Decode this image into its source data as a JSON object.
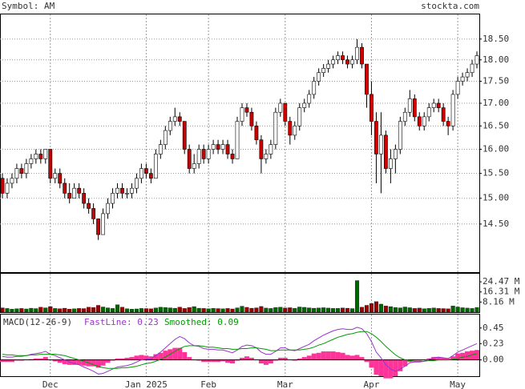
{
  "chart_data": [
    {
      "type": "candlestick",
      "title": "Symbol: AM",
      "source": "stockta.com",
      "log": true,
      "grid": true,
      "up_color": "#ffffff",
      "down_color": "#cc0000",
      "xlim": [
        -0.5,
        99.5
      ],
      "xticks": [
        {
          "value": 10,
          "label": "Dec"
        },
        {
          "value": 30,
          "label": "Jan 2025"
        },
        {
          "value": 43,
          "label": "Feb"
        },
        {
          "value": 59,
          "label": "Mar"
        },
        {
          "value": 77,
          "label": "Apr"
        },
        {
          "value": 95,
          "label": "May"
        }
      ],
      "ylim": [
        13.61,
        19.11
      ],
      "yticks": [
        {
          "value": 14.5,
          "label": "14.50"
        },
        {
          "value": 15,
          "label": "15.00"
        },
        {
          "value": 15.5,
          "label": "15.50"
        },
        {
          "value": 16,
          "label": "16.00"
        },
        {
          "value": 16.5,
          "label": "16.50"
        },
        {
          "value": 17,
          "label": "17.00"
        },
        {
          "value": 17.5,
          "label": "17.50"
        },
        {
          "value": 18,
          "label": "18.00"
        },
        {
          "value": 18.5,
          "label": "18.50"
        }
      ],
      "candles": [
        [
          15.4,
          15.5,
          15.0,
          15.1
        ],
        [
          15.1,
          15.4,
          15.0,
          15.3
        ],
        [
          15.3,
          15.5,
          15.2,
          15.4
        ],
        [
          15.4,
          15.7,
          15.3,
          15.6
        ],
        [
          15.6,
          15.7,
          15.4,
          15.5
        ],
        [
          15.5,
          15.8,
          15.4,
          15.7
        ],
        [
          15.7,
          15.9,
          15.6,
          15.8
        ],
        [
          15.8,
          16.0,
          15.7,
          15.9
        ],
        [
          15.9,
          16.0,
          15.7,
          15.8
        ],
        [
          15.8,
          16.0,
          15.7,
          16.0
        ],
        [
          16.0,
          16.0,
          15.3,
          15.4
        ],
        [
          15.4,
          15.6,
          15.3,
          15.5
        ],
        [
          15.5,
          15.6,
          15.2,
          15.3
        ],
        [
          15.3,
          15.4,
          15.0,
          15.1
        ],
        [
          15.1,
          15.3,
          14.9,
          15.0
        ],
        [
          15.0,
          15.3,
          15.0,
          15.2
        ],
        [
          15.2,
          15.3,
          15.0,
          15.1
        ],
        [
          15.1,
          15.2,
          14.8,
          14.9
        ],
        [
          14.9,
          15.0,
          14.7,
          14.8
        ],
        [
          14.8,
          14.9,
          14.5,
          14.6
        ],
        [
          14.6,
          14.6,
          14.2,
          14.3
        ],
        [
          14.3,
          14.8,
          14.3,
          14.7
        ],
        [
          14.7,
          15.0,
          14.6,
          14.9
        ],
        [
          14.9,
          15.2,
          14.8,
          15.1
        ],
        [
          15.1,
          15.3,
          15.0,
          15.2
        ],
        [
          15.2,
          15.3,
          15.0,
          15.1
        ],
        [
          15.1,
          15.2,
          15.0,
          15.1
        ],
        [
          15.1,
          15.3,
          15.0,
          15.2
        ],
        [
          15.2,
          15.5,
          15.1,
          15.4
        ],
        [
          15.4,
          15.7,
          15.3,
          15.6
        ],
        [
          15.6,
          15.7,
          15.4,
          15.5
        ],
        [
          15.5,
          15.6,
          15.3,
          15.4
        ],
        [
          15.4,
          16.0,
          15.4,
          15.9
        ],
        [
          15.9,
          16.2,
          15.8,
          16.1
        ],
        [
          16.1,
          16.5,
          16.0,
          16.4
        ],
        [
          16.4,
          16.7,
          16.3,
          16.6
        ],
        [
          16.6,
          16.9,
          16.5,
          16.7
        ],
        [
          16.7,
          16.8,
          16.5,
          16.6
        ],
        [
          16.6,
          16.6,
          15.9,
          16.0
        ],
        [
          16.0,
          16.1,
          15.5,
          15.6
        ],
        [
          15.6,
          15.9,
          15.5,
          15.7
        ],
        [
          15.7,
          16.1,
          15.6,
          16.0
        ],
        [
          16.0,
          16.1,
          15.7,
          15.8
        ],
        [
          15.8,
          16.1,
          15.7,
          16.0
        ],
        [
          16.0,
          16.2,
          15.9,
          16.1
        ],
        [
          16.1,
          16.2,
          15.9,
          16.0
        ],
        [
          16.0,
          16.2,
          15.9,
          16.1
        ],
        [
          16.1,
          16.2,
          15.8,
          15.9
        ],
        [
          15.9,
          16.0,
          15.7,
          15.8
        ],
        [
          15.8,
          16.7,
          15.8,
          16.6
        ],
        [
          16.6,
          17.0,
          16.5,
          16.9
        ],
        [
          16.9,
          17.0,
          16.7,
          16.8
        ],
        [
          16.8,
          16.9,
          16.4,
          16.5
        ],
        [
          16.5,
          16.6,
          16.1,
          16.2
        ],
        [
          16.2,
          16.3,
          15.5,
          15.8
        ],
        [
          15.8,
          16.0,
          15.7,
          15.9
        ],
        [
          15.9,
          16.2,
          15.8,
          16.1
        ],
        [
          16.1,
          16.9,
          16.0,
          16.8
        ],
        [
          16.8,
          17.1,
          16.7,
          17.0
        ],
        [
          17.0,
          17.0,
          16.5,
          16.6
        ],
        [
          16.6,
          16.7,
          16.1,
          16.3
        ],
        [
          16.3,
          16.6,
          16.2,
          16.5
        ],
        [
          16.5,
          17.0,
          16.4,
          16.9
        ],
        [
          16.9,
          17.1,
          16.8,
          17.0
        ],
        [
          17.0,
          17.3,
          16.9,
          17.2
        ],
        [
          17.2,
          17.6,
          17.1,
          17.5
        ],
        [
          17.5,
          17.8,
          17.4,
          17.7
        ],
        [
          17.7,
          17.9,
          17.6,
          17.8
        ],
        [
          17.8,
          18.0,
          17.7,
          17.9
        ],
        [
          17.9,
          18.1,
          17.8,
          18.0
        ],
        [
          18.0,
          18.2,
          17.9,
          18.1
        ],
        [
          18.1,
          18.2,
          17.9,
          18.0
        ],
        [
          18.0,
          18.1,
          17.8,
          17.9
        ],
        [
          17.9,
          18.1,
          17.8,
          18.0
        ],
        [
          18.0,
          18.5,
          17.9,
          18.3
        ],
        [
          18.3,
          18.4,
          17.8,
          17.9
        ],
        [
          17.9,
          17.9,
          16.9,
          17.2
        ],
        [
          17.2,
          17.5,
          16.3,
          16.6
        ],
        [
          16.6,
          16.8,
          15.3,
          15.9
        ],
        [
          15.9,
          16.8,
          15.1,
          16.3
        ],
        [
          16.3,
          16.4,
          15.5,
          15.6
        ],
        [
          15.6,
          16.0,
          15.3,
          15.8
        ],
        [
          15.8,
          16.1,
          15.5,
          16.0
        ],
        [
          16.0,
          16.7,
          15.9,
          16.6
        ],
        [
          16.6,
          16.9,
          16.5,
          16.8
        ],
        [
          16.8,
          17.3,
          16.7,
          17.1
        ],
        [
          17.1,
          17.2,
          16.6,
          16.7
        ],
        [
          16.7,
          16.8,
          16.4,
          16.5
        ],
        [
          16.5,
          16.8,
          16.4,
          16.7
        ],
        [
          16.7,
          17.0,
          16.6,
          16.9
        ],
        [
          16.9,
          17.1,
          16.8,
          17.0
        ],
        [
          17.0,
          17.1,
          16.8,
          16.9
        ],
        [
          16.9,
          17.0,
          16.5,
          16.6
        ],
        [
          16.6,
          16.7,
          16.3,
          16.5
        ],
        [
          16.5,
          17.3,
          16.4,
          17.2
        ],
        [
          17.2,
          17.6,
          17.1,
          17.5
        ],
        [
          17.5,
          17.7,
          17.4,
          17.6
        ],
        [
          17.6,
          17.8,
          17.5,
          17.7
        ],
        [
          17.7,
          18.0,
          17.6,
          17.9
        ],
        [
          17.9,
          18.2,
          17.8,
          18.1
        ]
      ]
    },
    {
      "type": "bar",
      "up_color": "#006600",
      "down_color": "#990000",
      "ylim": [
        0,
        31.0
      ],
      "yticks": [
        {
          "value": 8.16,
          "label": "8.16 M"
        },
        {
          "value": 16.31,
          "label": "16.31 M"
        },
        {
          "value": 24.47,
          "label": "24.47 M"
        }
      ],
      "values": [
        3.5,
        3.0,
        2.5,
        2.8,
        3.0,
        2.6,
        3.2,
        2.9,
        4.0,
        3.5,
        4.5,
        3.0,
        2.8,
        3.2,
        2.5,
        2.7,
        3.0,
        2.9,
        4.0,
        3.8,
        5.5,
        4.2,
        3.5,
        3.0,
        6.0,
        4.0,
        2.8,
        2.5,
        2.6,
        3.0,
        2.9,
        2.7,
        3.4,
        4.0,
        3.8,
        3.5,
        3.2,
        4.1,
        3.0,
        3.8,
        4.5,
        3.2,
        3.0,
        2.8,
        3.1,
        2.9,
        2.7,
        3.0,
        2.6,
        3.5,
        4.8,
        3.9,
        3.2,
        3.5,
        4.6,
        3.3,
        3.0,
        3.8,
        4.0,
        3.4,
        3.6,
        3.1,
        4.2,
        3.9,
        3.5,
        3.2,
        3.4,
        3.6,
        3.3,
        3.0,
        3.1,
        3.4,
        3.2,
        2.9,
        25.5,
        4.0,
        5.5,
        7.0,
        8.5,
        6.5,
        5.0,
        4.5,
        3.8,
        3.5,
        4.2,
        3.6,
        3.0,
        3.3,
        2.8,
        3.1,
        3.4,
        3.0,
        2.9,
        2.7,
        5.0,
        4.2,
        3.6,
        3.3,
        3.0,
        3.8
      ]
    },
    {
      "type": "macd",
      "title": "MACD(12-26-9)",
      "ylim": [
        -0.23,
        0.64
      ],
      "yticks": [
        {
          "value": 0,
          "label": "0.00"
        },
        0.23,
        0.45
      ],
      "histogram": {
        "color": "#ff3399",
        "values": [
          -0.03,
          -0.03,
          -0.03,
          -0.01,
          -0.01,
          0.0,
          0.01,
          0.02,
          0.02,
          0.04,
          0.0,
          -0.02,
          -0.04,
          -0.06,
          -0.07,
          -0.07,
          -0.07,
          -0.08,
          -0.09,
          -0.09,
          -0.11,
          -0.08,
          -0.04,
          -0.01,
          0.02,
          0.02,
          0.03,
          0.04,
          0.06,
          0.07,
          0.06,
          0.05,
          0.08,
          0.1,
          0.13,
          0.15,
          0.17,
          0.17,
          0.11,
          0.04,
          0.0,
          -0.01,
          -0.03,
          -0.03,
          -0.03,
          -0.03,
          -0.02,
          -0.04,
          -0.05,
          -0.01,
          0.03,
          0.05,
          0.03,
          0.0,
          -0.05,
          -0.07,
          -0.05,
          -0.01,
          0.03,
          0.03,
          0.0,
          -0.01,
          0.02,
          0.04,
          0.06,
          0.09,
          0.1,
          0.12,
          0.12,
          0.12,
          0.11,
          0.1,
          0.07,
          0.06,
          0.07,
          0.04,
          -0.03,
          -0.11,
          -0.21,
          -0.23,
          -0.26,
          -0.26,
          -0.23,
          -0.16,
          -0.09,
          -0.03,
          -0.01,
          -0.01,
          0.0,
          0.02,
          0.04,
          0.04,
          0.03,
          0.02,
          0.05,
          0.09,
          0.1,
          0.12,
          0.13,
          0.14
        ]
      },
      "series": [
        {
          "name": "FastLine: 0.23",
          "color": "#9933cc",
          "values": [
            0.05,
            0.04,
            0.04,
            0.05,
            0.05,
            0.06,
            0.08,
            0.09,
            0.1,
            0.12,
            0.08,
            0.06,
            0.03,
            0.0,
            -0.03,
            -0.05,
            -0.07,
            -0.1,
            -0.13,
            -0.16,
            -0.2,
            -0.19,
            -0.16,
            -0.13,
            -0.1,
            -0.09,
            -0.08,
            -0.06,
            -0.03,
            0.0,
            0.01,
            0.01,
            0.06,
            0.11,
            0.17,
            0.23,
            0.29,
            0.33,
            0.3,
            0.24,
            0.2,
            0.19,
            0.16,
            0.15,
            0.15,
            0.14,
            0.14,
            0.12,
            0.1,
            0.14,
            0.19,
            0.21,
            0.2,
            0.17,
            0.11,
            0.08,
            0.08,
            0.12,
            0.17,
            0.17,
            0.14,
            0.13,
            0.16,
            0.19,
            0.22,
            0.27,
            0.31,
            0.35,
            0.38,
            0.41,
            0.43,
            0.44,
            0.43,
            0.43,
            0.46,
            0.44,
            0.37,
            0.26,
            0.11,
            0.03,
            -0.07,
            -0.13,
            -0.16,
            -0.13,
            -0.09,
            -0.04,
            -0.03,
            -0.03,
            -0.02,
            0.01,
            0.03,
            0.04,
            0.03,
            0.02,
            0.06,
            0.11,
            0.14,
            0.17,
            0.2,
            0.23
          ]
        },
        {
          "name": "Smoothed: 0.09",
          "color": "#009900",
          "values": [
            0.08,
            0.07,
            0.07,
            0.06,
            0.06,
            0.06,
            0.07,
            0.07,
            0.08,
            0.08,
            0.08,
            0.08,
            0.07,
            0.06,
            0.04,
            0.02,
            0.0,
            -0.02,
            -0.04,
            -0.07,
            -0.09,
            -0.11,
            -0.12,
            -0.12,
            -0.12,
            -0.11,
            -0.11,
            -0.1,
            -0.09,
            -0.07,
            -0.05,
            -0.04,
            -0.02,
            0.01,
            0.04,
            0.08,
            0.12,
            0.16,
            0.19,
            0.2,
            0.2,
            0.2,
            0.19,
            0.18,
            0.18,
            0.17,
            0.16,
            0.16,
            0.15,
            0.15,
            0.16,
            0.16,
            0.17,
            0.17,
            0.16,
            0.15,
            0.13,
            0.13,
            0.14,
            0.14,
            0.14,
            0.14,
            0.14,
            0.15,
            0.16,
            0.18,
            0.21,
            0.23,
            0.26,
            0.29,
            0.32,
            0.34,
            0.36,
            0.37,
            0.39,
            0.4,
            0.4,
            0.37,
            0.32,
            0.26,
            0.19,
            0.13,
            0.07,
            0.03,
            0.0,
            -0.01,
            -0.02,
            -0.02,
            -0.02,
            -0.01,
            -0.01,
            0.0,
            0.0,
            0.0,
            0.01,
            0.02,
            0.04,
            0.05,
            0.07,
            0.09
          ]
        }
      ]
    }
  ]
}
